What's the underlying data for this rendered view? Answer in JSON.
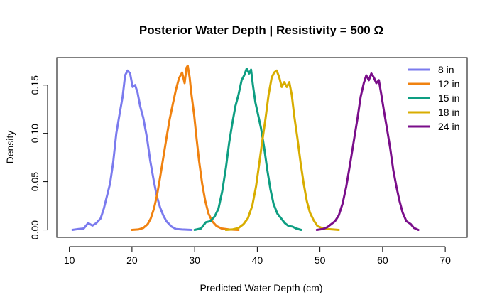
{
  "chart_data": {
    "type": "line",
    "title": "Posterior Water Depth | Resistivity = 500 Ω",
    "xlabel": "Predicted Water Depth (cm)",
    "ylabel": "Density",
    "xlim": [
      8,
      73.5
    ],
    "ylim": [
      -0.0077,
      0.1785
    ],
    "xticks": [
      10,
      20,
      30,
      40,
      50,
      60,
      70
    ],
    "yticks": [
      0.0,
      0.05,
      0.1,
      0.15
    ],
    "ytick_labels": [
      "0.00",
      "0.05",
      "0.10",
      "0.15"
    ],
    "legend_position": "top-right",
    "grid": false,
    "series": [
      {
        "name": "8 in",
        "color": "#7b7bee",
        "points": [
          [
            10.5,
            0.0
          ],
          [
            11.5,
            0.001
          ],
          [
            12.3,
            0.0015
          ],
          [
            13,
            0.007
          ],
          [
            13.7,
            0.0045
          ],
          [
            14.3,
            0.007
          ],
          [
            15,
            0.012
          ],
          [
            15.5,
            0.022
          ],
          [
            16,
            0.035
          ],
          [
            16.5,
            0.048
          ],
          [
            17,
            0.07
          ],
          [
            17.5,
            0.1
          ],
          [
            18,
            0.119
          ],
          [
            18.5,
            0.138
          ],
          [
            18.9,
            0.16
          ],
          [
            19.3,
            0.165
          ],
          [
            19.7,
            0.162
          ],
          [
            20.1,
            0.148
          ],
          [
            20.5,
            0.15
          ],
          [
            20.9,
            0.142
          ],
          [
            21.3,
            0.128
          ],
          [
            21.8,
            0.116
          ],
          [
            22.4,
            0.095
          ],
          [
            22.9,
            0.072
          ],
          [
            23.5,
            0.05
          ],
          [
            24,
            0.034
          ],
          [
            24.5,
            0.023
          ],
          [
            25,
            0.015
          ],
          [
            25.5,
            0.009
          ],
          [
            26.3,
            0.0035
          ],
          [
            27,
            0.001
          ],
          [
            28,
            0.0005
          ],
          [
            29.5,
            0.0
          ]
        ]
      },
      {
        "name": "12 in",
        "color": "#f08210",
        "points": [
          [
            20,
            0.0
          ],
          [
            21,
            0.0005
          ],
          [
            21.8,
            0.002
          ],
          [
            22.5,
            0.006
          ],
          [
            23,
            0.012
          ],
          [
            23.5,
            0.022
          ],
          [
            24,
            0.036
          ],
          [
            24.5,
            0.055
          ],
          [
            25,
            0.075
          ],
          [
            25.5,
            0.095
          ],
          [
            26,
            0.114
          ],
          [
            26.5,
            0.13
          ],
          [
            27,
            0.145
          ],
          [
            27.5,
            0.157
          ],
          [
            28,
            0.163
          ],
          [
            28.4,
            0.152
          ],
          [
            28.7,
            0.168
          ],
          [
            28.9,
            0.17
          ],
          [
            29.2,
            0.158
          ],
          [
            29.5,
            0.14
          ],
          [
            29.9,
            0.12
          ],
          [
            30.3,
            0.095
          ],
          [
            30.7,
            0.072
          ],
          [
            31.2,
            0.048
          ],
          [
            31.7,
            0.03
          ],
          [
            32.2,
            0.017
          ],
          [
            32.8,
            0.009
          ],
          [
            33.5,
            0.004
          ],
          [
            34.3,
            0.0015
          ],
          [
            35.5,
            0.0005
          ],
          [
            37,
            0.0
          ]
        ]
      },
      {
        "name": "15 in",
        "color": "#0e9e82",
        "points": [
          [
            30,
            0.0
          ],
          [
            31,
            0.0015
          ],
          [
            31.8,
            0.008
          ],
          [
            32.5,
            0.009
          ],
          [
            33.2,
            0.014
          ],
          [
            33.8,
            0.022
          ],
          [
            34.4,
            0.04
          ],
          [
            35,
            0.065
          ],
          [
            35.5,
            0.09
          ],
          [
            36,
            0.11
          ],
          [
            36.5,
            0.128
          ],
          [
            37,
            0.14
          ],
          [
            37.5,
            0.155
          ],
          [
            37.9,
            0.16
          ],
          [
            38.3,
            0.167
          ],
          [
            38.7,
            0.162
          ],
          [
            39,
            0.166
          ],
          [
            39.3,
            0.15
          ],
          [
            39.7,
            0.132
          ],
          [
            40.1,
            0.12
          ],
          [
            40.6,
            0.105
          ],
          [
            41.1,
            0.085
          ],
          [
            41.6,
            0.062
          ],
          [
            42.1,
            0.042
          ],
          [
            42.6,
            0.027
          ],
          [
            43.2,
            0.017
          ],
          [
            43.8,
            0.012
          ],
          [
            44.4,
            0.007
          ],
          [
            45,
            0.004
          ],
          [
            45.6,
            0.0035
          ],
          [
            46.2,
            0.0015
          ],
          [
            47,
            0.0
          ]
        ]
      },
      {
        "name": "18 in",
        "color": "#d8ad00",
        "points": [
          [
            35,
            0.0
          ],
          [
            36,
            0.0005
          ],
          [
            37,
            0.002
          ],
          [
            37.8,
            0.006
          ],
          [
            38.5,
            0.012
          ],
          [
            39.2,
            0.025
          ],
          [
            39.8,
            0.045
          ],
          [
            40.3,
            0.068
          ],
          [
            40.8,
            0.092
          ],
          [
            41.3,
            0.115
          ],
          [
            41.8,
            0.14
          ],
          [
            42.3,
            0.158
          ],
          [
            42.7,
            0.163
          ],
          [
            43.1,
            0.165
          ],
          [
            43.5,
            0.158
          ],
          [
            43.9,
            0.148
          ],
          [
            44.3,
            0.153
          ],
          [
            44.7,
            0.148
          ],
          [
            45.1,
            0.153
          ],
          [
            45.5,
            0.14
          ],
          [
            45.9,
            0.118
          ],
          [
            46.4,
            0.095
          ],
          [
            46.9,
            0.07
          ],
          [
            47.4,
            0.048
          ],
          [
            47.9,
            0.03
          ],
          [
            48.4,
            0.018
          ],
          [
            49,
            0.01
          ],
          [
            49.6,
            0.004
          ],
          [
            50.3,
            0.002
          ],
          [
            51.2,
            0.001
          ],
          [
            53,
            0.0
          ]
        ]
      },
      {
        "name": "24 in",
        "color": "#7a0e8a",
        "points": [
          [
            49.5,
            0.0
          ],
          [
            50.5,
            0.001
          ],
          [
            51.2,
            0.003
          ],
          [
            51.8,
            0.006
          ],
          [
            52.4,
            0.009
          ],
          [
            53,
            0.015
          ],
          [
            53.6,
            0.027
          ],
          [
            54.2,
            0.045
          ],
          [
            54.8,
            0.068
          ],
          [
            55.4,
            0.092
          ],
          [
            56,
            0.116
          ],
          [
            56.5,
            0.138
          ],
          [
            57,
            0.152
          ],
          [
            57.4,
            0.16
          ],
          [
            57.8,
            0.155
          ],
          [
            58.2,
            0.162
          ],
          [
            58.6,
            0.158
          ],
          [
            59,
            0.152
          ],
          [
            59.4,
            0.155
          ],
          [
            59.8,
            0.14
          ],
          [
            60.2,
            0.124
          ],
          [
            60.7,
            0.105
          ],
          [
            61.2,
            0.085
          ],
          [
            61.7,
            0.062
          ],
          [
            62.2,
            0.045
          ],
          [
            62.7,
            0.03
          ],
          [
            63.2,
            0.018
          ],
          [
            63.8,
            0.009
          ],
          [
            64.5,
            0.006
          ],
          [
            65,
            0.002
          ],
          [
            65.7,
            0.0
          ]
        ]
      }
    ]
  }
}
